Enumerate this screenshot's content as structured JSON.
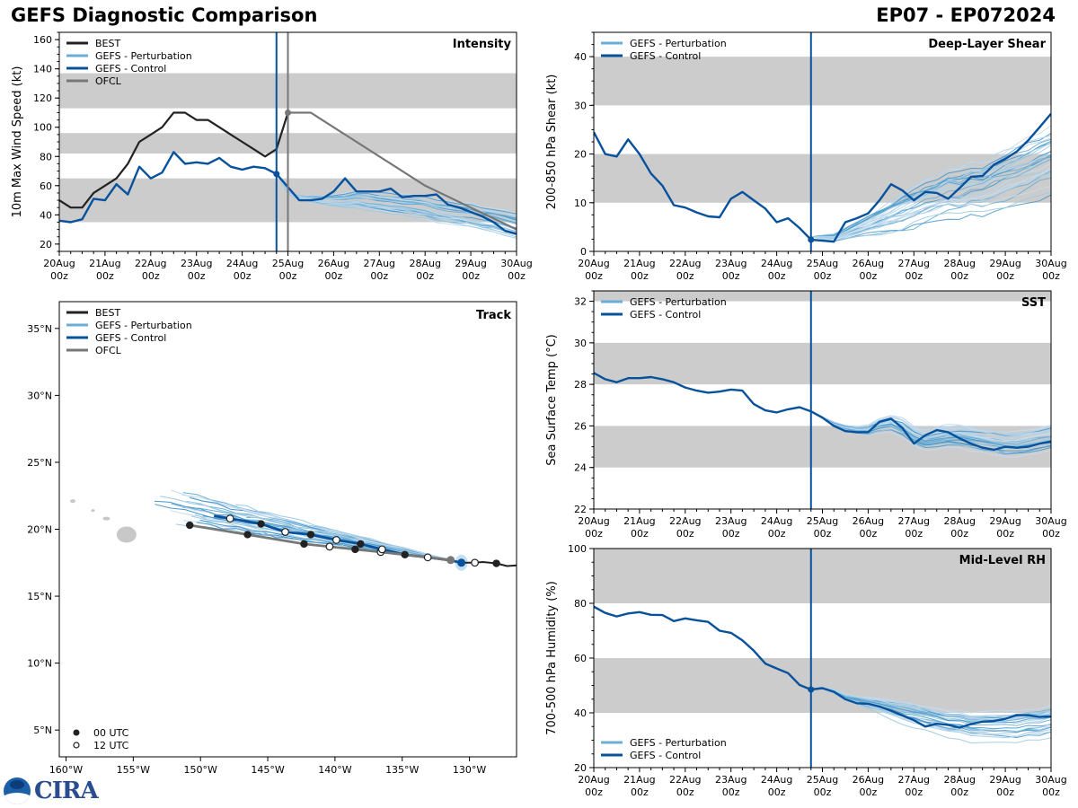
{
  "header": {
    "title_left": "GEFS Diagnostic Comparison",
    "title_right": "EP07 - EP072024"
  },
  "colors": {
    "best": "#222222",
    "perturbation": "#6baed6",
    "control": "#08519c",
    "ofcl": "#777777",
    "band": "#cccccc"
  },
  "legend_labels": {
    "best": "BEST",
    "perturbation": "GEFS - Perturbation",
    "control": "GEFS - Control",
    "ofcl": "OFCL",
    "utc00": "00 UTC",
    "utc12": "12 UTC"
  },
  "time_ticks": [
    "20Aug",
    "21Aug",
    "22Aug",
    "23Aug",
    "24Aug",
    "25Aug",
    "26Aug",
    "27Aug",
    "28Aug",
    "29Aug",
    "30Aug"
  ],
  "time_tick_sub": "00z",
  "init_time_days": 4.75,
  "ofcl_time_days": 5.0,
  "chart_data": [
    {
      "id": "intensity",
      "type": "line",
      "title": "Intensity",
      "ylabel": "10m Max Wind Speed (kt)",
      "xlabel": "",
      "xlim_days": [
        0,
        10
      ],
      "ylim": [
        15,
        165
      ],
      "yticks": [
        20,
        40,
        60,
        80,
        100,
        120,
        140,
        160
      ],
      "bands": [
        [
          35,
          65
        ],
        [
          82,
          96
        ],
        [
          113,
          137
        ]
      ],
      "legend": [
        "best",
        "perturbation",
        "control",
        "ofcl"
      ],
      "legend_pos": "top-left",
      "series": [
        {
          "name": "BEST",
          "key": "best",
          "x_step_days": 0.25,
          "x_start": 0,
          "values": [
            50,
            45,
            45,
            55,
            60,
            65,
            75,
            90,
            95,
            100,
            110,
            110,
            105,
            105,
            100,
            95,
            90,
            85,
            80,
            85,
            110
          ]
        },
        {
          "name": "GEFS - Control",
          "key": "control",
          "x_step_days": 0.25,
          "x_start": 0,
          "values": [
            36,
            35,
            37,
            51,
            50,
            61,
            54,
            73,
            65,
            69,
            83,
            75,
            76,
            75,
            79,
            73,
            71,
            73,
            72,
            68,
            59,
            50,
            50,
            51,
            56,
            65,
            56,
            56,
            56,
            58,
            52,
            53,
            53,
            54,
            47,
            45,
            42,
            39,
            35,
            29,
            27
          ]
        },
        {
          "name": "OFCL",
          "key": "ofcl",
          "x": [
            5.0,
            5.5,
            8.0,
            10.0
          ],
          "values": [
            110,
            110,
            60,
            30
          ]
        }
      ],
      "ensemble": {
        "key": "perturbation",
        "x_start": 4.75,
        "x_step_days": 0.25,
        "mean": [
          70,
          55,
          52,
          51,
          50,
          50,
          50,
          51,
          50,
          49,
          48,
          47,
          46,
          45,
          43,
          42,
          41,
          40,
          38,
          37,
          35,
          33,
          31,
          30,
          28,
          27,
          26,
          25,
          25,
          26,
          27,
          28,
          28,
          29,
          30,
          30,
          31,
          31,
          31,
          32,
          33,
          34
        ],
        "spread": 8
      },
      "markers": [
        {
          "key": "control",
          "x": 4.75,
          "y": 68
        },
        {
          "key": "ofcl",
          "x": 5.0,
          "y": 110
        }
      ]
    },
    {
      "id": "shear",
      "type": "line",
      "title": "Deep-Layer Shear",
      "ylabel": "200-850 hPa Shear (kt)",
      "xlim_days": [
        0,
        10
      ],
      "ylim": [
        0,
        45
      ],
      "yticks": [
        0,
        10,
        20,
        30,
        40
      ],
      "bands": [
        [
          10,
          20
        ],
        [
          30,
          40
        ]
      ],
      "legend": [
        "perturbation",
        "control"
      ],
      "legend_pos": "top-left",
      "series": [
        {
          "name": "GEFS - Control",
          "key": "control",
          "x_step_days": 0.25,
          "x_start": 0,
          "values": [
            24.5,
            20,
            19.5,
            23,
            20,
            16,
            13.5,
            9.5,
            9,
            8,
            7.2,
            7,
            10.8,
            12.2,
            10.5,
            8.8,
            6,
            6.8,
            4.8,
            2.4,
            2.2,
            2,
            6,
            6.8,
            7.8,
            10.5,
            13.8,
            12.5,
            10.5,
            12.2,
            12,
            10.8,
            13,
            15.3,
            15.5,
            17.8,
            19,
            20.5,
            22.8,
            25.5,
            28.3
          ]
        }
      ],
      "ensemble": {
        "key": "perturbation",
        "x_start": 4.75,
        "x_step_days": 0.25,
        "mean": [
          3,
          3,
          3,
          4,
          5,
          6,
          7,
          8,
          9,
          10,
          11,
          12,
          13,
          13,
          14,
          14,
          15,
          16,
          17,
          18,
          19,
          20,
          21,
          22,
          23,
          24,
          25,
          26,
          27,
          28,
          29,
          30,
          30,
          31,
          31,
          32,
          32,
          33,
          33,
          33,
          34,
          34
        ],
        "spread": 6
      },
      "markers": [
        {
          "key": "control",
          "x": 4.75,
          "y": 2.4
        }
      ]
    },
    {
      "id": "sst",
      "type": "line",
      "title": "SST",
      "ylabel": "Sea Surface Temp (°C)",
      "xlim_days": [
        0,
        10
      ],
      "ylim": [
        22,
        32.5
      ],
      "yticks": [
        22,
        24,
        26,
        28,
        30,
        32
      ],
      "bands": [
        [
          24,
          26
        ],
        [
          28,
          30
        ],
        [
          32,
          32.5
        ]
      ],
      "legend": [
        "perturbation",
        "control"
      ],
      "legend_pos": "top-left",
      "series": [
        {
          "name": "GEFS - Control",
          "key": "control",
          "x_step_days": 0.25,
          "x_start": 0,
          "values": [
            28.55,
            28.25,
            28.1,
            28.3,
            28.3,
            28.35,
            28.25,
            28.1,
            27.85,
            27.7,
            27.6,
            27.65,
            27.75,
            27.7,
            27.05,
            26.75,
            26.65,
            26.8,
            26.9,
            26.7,
            26.4,
            26.0,
            25.75,
            25.7,
            25.7,
            26.2,
            26.35,
            25.9,
            25.15,
            25.55,
            25.8,
            25.7,
            25.4,
            25.15,
            24.95,
            24.85,
            25.0,
            24.95,
            25.0,
            25.15,
            25.25
          ]
        }
      ],
      "ensemble": {
        "key": "perturbation",
        "x_start": 4.75,
        "x_step_days": 0.25,
        "mean": [
          26.7,
          26.4,
          26.1,
          25.9,
          25.8,
          25.8,
          26.0,
          26.1,
          25.9,
          25.5,
          25.3,
          25.4,
          25.5,
          25.5,
          25.4,
          25.3,
          25.2,
          25.1,
          25.1,
          25.2,
          25.3,
          25.4,
          25.5,
          25.5,
          25.6,
          25.7,
          25.7,
          25.8,
          25.8,
          25.9
        ],
        "spread": 0.6
      },
      "markers": []
    },
    {
      "id": "rh",
      "type": "line",
      "title": "Mid-Level RH",
      "ylabel": "700-500 hPa Humidity (%)",
      "xlim_days": [
        0,
        10
      ],
      "ylim": [
        20,
        100
      ],
      "yticks": [
        20,
        40,
        60,
        80,
        100
      ],
      "bands": [
        [
          40,
          60
        ],
        [
          80,
          100
        ]
      ],
      "legend": [
        "perturbation",
        "control"
      ],
      "legend_pos": "bottom-left",
      "series": [
        {
          "name": "GEFS - Control",
          "key": "control",
          "x_step_days": 0.25,
          "x_start": 0,
          "values": [
            78.8,
            76.5,
            75.2,
            76.3,
            76.8,
            75.8,
            75.7,
            73.5,
            74.5,
            73.8,
            73.2,
            70,
            69.2,
            66.5,
            62.7,
            58,
            56.2,
            54.5,
            50.2,
            48.5,
            49,
            47.7,
            45,
            43.5,
            43.3,
            42.3,
            40.8,
            39,
            37.3,
            35,
            36,
            35.6,
            34.6,
            35.9,
            36.8,
            37,
            37.8,
            39.2,
            39.1,
            38.5,
            38.7
          ]
        }
      ],
      "ensemble": {
        "key": "perturbation",
        "x_start": 4.75,
        "x_step_days": 0.25,
        "mean": [
          49,
          49,
          48,
          46,
          45,
          44,
          43,
          42,
          41,
          40,
          39,
          38,
          37,
          37,
          36,
          36,
          36,
          36,
          36,
          37,
          37,
          38,
          38,
          38,
          39,
          39,
          39,
          40,
          40,
          40
        ],
        "spread": 5
      },
      "markers": [
        {
          "key": "control",
          "x": 4.75,
          "y": 48.5
        }
      ]
    },
    {
      "id": "track",
      "type": "line",
      "title": "Track",
      "xlabel": "",
      "xlim_lon": [
        -160.5,
        -126.5
      ],
      "ylim_lat": [
        3,
        37
      ],
      "xticks": [
        -160,
        -155,
        -150,
        -145,
        -140,
        -135,
        -130
      ],
      "xtick_labels": [
        "160°W",
        "155°W",
        "150°W",
        "145°W",
        "140°W",
        "135°W",
        "130°W"
      ],
      "yticks": [
        5,
        10,
        15,
        20,
        25,
        30,
        35
      ],
      "ytick_labels": [
        "5°N",
        "10°N",
        "15°N",
        "20°N",
        "25°N",
        "30°N",
        "35°N"
      ],
      "legend": [
        "best",
        "perturbation",
        "control",
        "ofcl"
      ],
      "legend_pos": "top-left",
      "series": [
        {
          "name": "BEST",
          "key": "best",
          "lon": [
            -126.5,
            -127.2,
            -128,
            -129,
            -129.6,
            -130.6
          ],
          "lat": [
            17.3,
            17.25,
            17.45,
            17.55,
            17.5,
            17.5
          ]
        },
        {
          "name": "GEFS - Control",
          "key": "control",
          "lon": [
            -130.6,
            -131.5,
            -133.1,
            -134.8,
            -136.5,
            -138.1,
            -139.9,
            -141.8,
            -143.7,
            -145.5,
            -147.8,
            -149
          ],
          "lat": [
            17.5,
            17.7,
            17.9,
            18.1,
            18.5,
            18.9,
            19.2,
            19.6,
            19.8,
            20.4,
            20.8,
            21
          ]
        },
        {
          "name": "OFCL",
          "key": "ofcl",
          "lon": [
            -131.4,
            -133.1,
            -134.8,
            -136.6,
            -138.5,
            -140.4,
            -142.3,
            -146.5,
            -150.8
          ],
          "lat": [
            17.7,
            17.9,
            18.1,
            18.3,
            18.5,
            18.7,
            18.9,
            19.6,
            20.3
          ]
        }
      ],
      "points_00utc": [
        [
          -128,
          17.45
        ],
        [
          -134.8,
          18.1
        ],
        [
          -138.5,
          18.5
        ],
        [
          -142.3,
          18.9
        ],
        [
          -146.5,
          19.6
        ],
        [
          -150.8,
          20.3
        ],
        [
          -138.1,
          18.9
        ],
        [
          -141.8,
          19.6
        ],
        [
          -145.5,
          20.4
        ]
      ],
      "points_12utc": [
        [
          -129.6,
          17.5
        ],
        [
          -133.1,
          17.9
        ],
        [
          -136.6,
          18.3
        ],
        [
          -140.4,
          18.7
        ],
        [
          -136.5,
          18.5
        ],
        [
          -139.9,
          19.2
        ],
        [
          -143.7,
          19.8
        ],
        [
          -147.8,
          20.8
        ]
      ],
      "current_position": {
        "control": [
          -130.6,
          17.5
        ],
        "ofcl": [
          -131.4,
          17.7
        ]
      },
      "ensemble_spread_deg": 2.2
    }
  ]
}
